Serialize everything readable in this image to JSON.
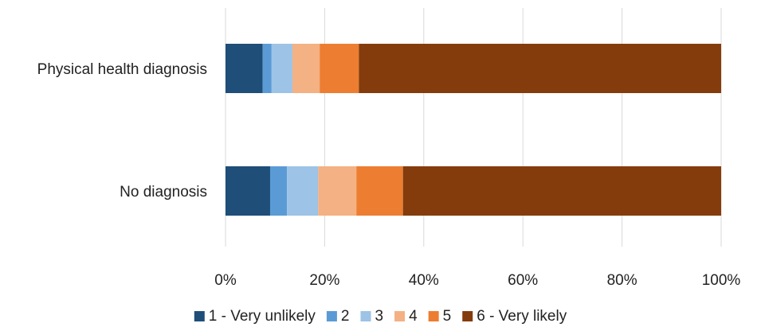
{
  "chart_data": {
    "type": "bar",
    "orientation": "horizontal",
    "stacked": "percent",
    "categories": [
      "Physical health diagnosis",
      "No diagnosis"
    ],
    "series": [
      {
        "name": "1 - Very unlikely",
        "color": "#1f4e79",
        "values": [
          7.5,
          9.0
        ]
      },
      {
        "name": "2",
        "color": "#5b9bd5",
        "values": [
          1.8,
          3.4
        ]
      },
      {
        "name": "3",
        "color": "#9dc3e6",
        "values": [
          4.2,
          6.3
        ]
      },
      {
        "name": "4",
        "color": "#f4b183",
        "values": [
          5.5,
          7.7
        ]
      },
      {
        "name": "5",
        "color": "#ed7d31",
        "values": [
          7.9,
          9.4
        ]
      },
      {
        "name": "6 - Very likely",
        "color": "#843c0c",
        "values": [
          73.1,
          64.2
        ]
      }
    ],
    "xticks": [
      "0%",
      "20%",
      "40%",
      "60%",
      "80%",
      "100%"
    ],
    "xlim": [
      0,
      100
    ],
    "grid": "vertical",
    "gridColor": "#d9d9d9",
    "legend": "bottom"
  }
}
